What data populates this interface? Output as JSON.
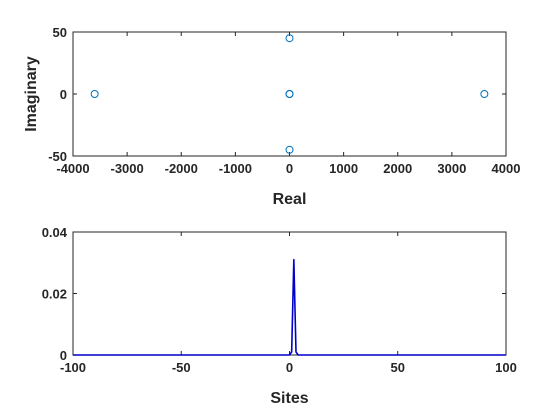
{
  "chart_data": [
    {
      "type": "scatter",
      "title": "",
      "xlabel": "Real",
      "ylabel": "Imaginary",
      "xlim": [
        -4000,
        4000
      ],
      "ylim": [
        -50,
        50
      ],
      "xticks": [
        -4000,
        -3000,
        -2000,
        -1000,
        0,
        1000,
        2000,
        3000,
        4000
      ],
      "xtick_labels": [
        "-4000",
        "-3000",
        "-2000",
        "-1000",
        "0",
        "1000",
        "2000",
        "3000",
        "4000"
      ],
      "yticks": [
        -50,
        0,
        50
      ],
      "ytick_labels": [
        "-50",
        "0",
        "50"
      ],
      "grid": false,
      "marker": "open-circle",
      "color": "#0072BD",
      "series": [
        {
          "points": [
            {
              "x": -3600,
              "y": 0
            },
            {
              "x": 0,
              "y": 45
            },
            {
              "x": 0,
              "y": 0
            },
            {
              "x": 0,
              "y": 0
            },
            {
              "x": 0,
              "y": -45
            },
            {
              "x": 3600,
              "y": 0
            }
          ]
        }
      ]
    },
    {
      "type": "line",
      "title": "",
      "xlabel": "Sites",
      "ylabel": "",
      "xlim": [
        -100,
        100
      ],
      "ylim": [
        0,
        0.04
      ],
      "xticks": [
        -100,
        -50,
        0,
        50,
        100
      ],
      "xtick_labels": [
        "-100",
        "-50",
        "0",
        "50",
        "100"
      ],
      "yticks": [
        0,
        0.02,
        0.04
      ],
      "ytick_labels": [
        "0",
        "0.02",
        "0.04"
      ],
      "grid": false,
      "color": "#0000CC",
      "series": [
        {
          "x": [
            -100,
            0,
            1,
            2,
            3,
            4,
            100
          ],
          "y": [
            0,
            0,
            0.001,
            0.031,
            0.001,
            0,
            0
          ]
        }
      ]
    }
  ]
}
